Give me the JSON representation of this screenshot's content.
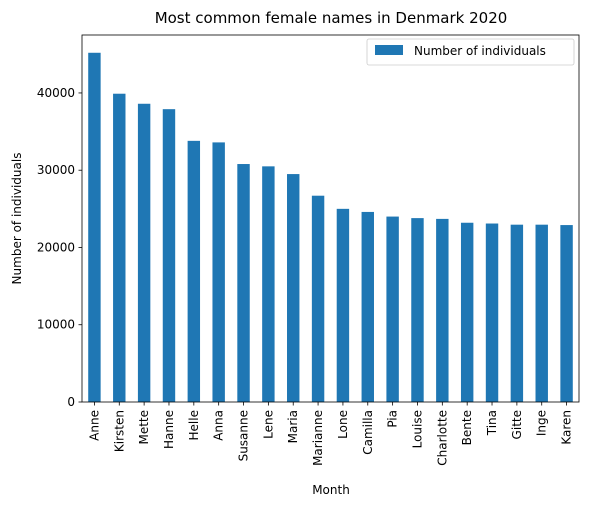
{
  "chart_data": {
    "type": "bar",
    "title": "Most common female names in Denmark 2020",
    "xlabel": "Month",
    "ylabel": "Number of individuals",
    "ylim": [
      0,
      47500
    ],
    "yticks": [
      0,
      10000,
      20000,
      30000,
      40000
    ],
    "grid": false,
    "legend_position": "top-right",
    "categories": [
      "Anne",
      "Kirsten",
      "Mette",
      "Hanne",
      "Helle",
      "Anna",
      "Susanne",
      "Lene",
      "Maria",
      "Marianne",
      "Lone",
      "Camilla",
      "Pia",
      "Louise",
      "Charlotte",
      "Bente",
      "Tina",
      "Gitte",
      "Inge",
      "Karen"
    ],
    "series": [
      {
        "name": "Number of individuals",
        "color": "#1f77b4",
        "values": [
          45200,
          39900,
          38600,
          37900,
          33800,
          33600,
          30800,
          30500,
          29500,
          26700,
          25000,
          24600,
          24000,
          23800,
          23700,
          23200,
          23100,
          22950,
          22950,
          22900
        ]
      }
    ]
  }
}
